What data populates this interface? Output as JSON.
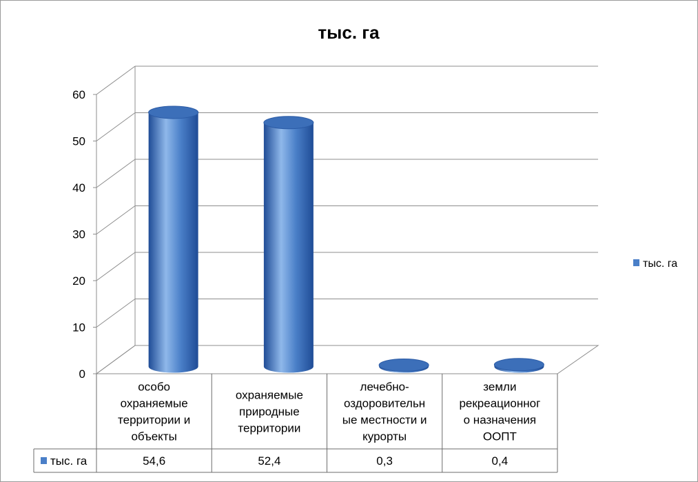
{
  "chart_data": {
    "type": "bar",
    "title": "тыс. га",
    "categories": [
      [
        "особо",
        "охраняемые",
        "территории и",
        "объекты"
      ],
      [
        "охраняемые",
        "природные",
        "территории"
      ],
      [
        "лечебно-",
        "оздоровительн",
        "ые местности и",
        "курорты"
      ],
      [
        "земли",
        "рекреационног",
        "о назначения",
        "ООПТ"
      ]
    ],
    "series": [
      {
        "name": "тыс. га",
        "values": [
          54.6,
          52.4,
          0.3,
          0.4
        ],
        "labels": [
          "54,6",
          "52,4",
          "0,3",
          "0,4"
        ]
      }
    ],
    "ylim": [
      0,
      60
    ],
    "yticks": [
      "0",
      "10",
      "20",
      "30",
      "40",
      "50",
      "60"
    ],
    "grid": true,
    "legend": "right",
    "data_table": true,
    "style": "3d-cylinder",
    "colors": {
      "bar": "#4a7fc8",
      "bar_dark": "#1f4c96",
      "bar_light": "#8fb8ea",
      "grid": "#8c8c8c"
    }
  }
}
